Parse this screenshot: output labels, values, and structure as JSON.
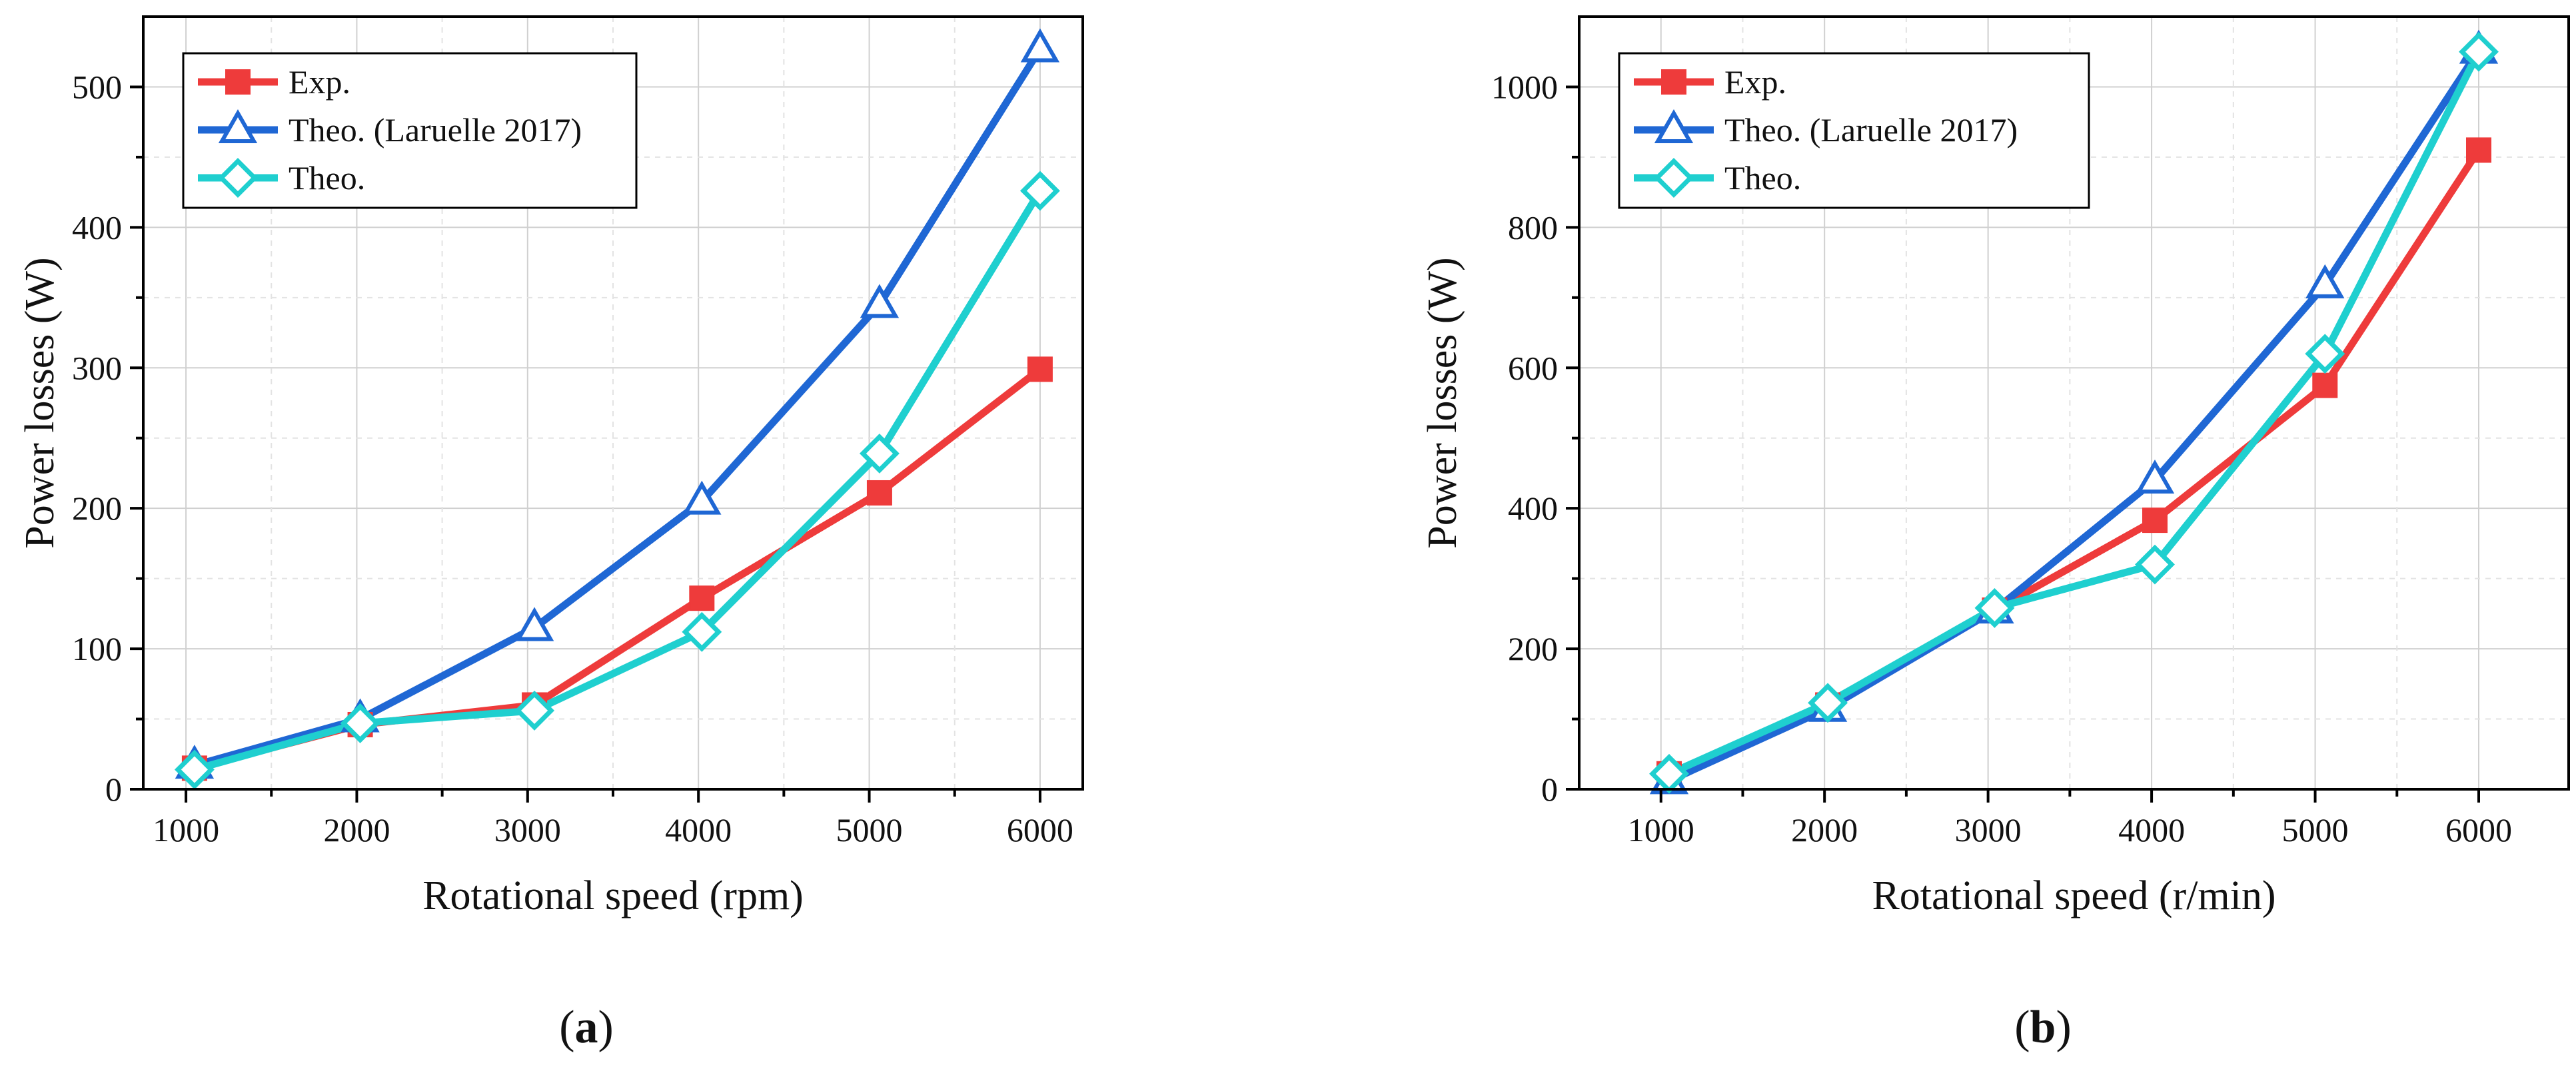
{
  "colors": {
    "exp": "#ee3b3b",
    "theo_laruelle": "#1f67d4",
    "theo": "#1fcfcf",
    "grid": "#d0d0d0",
    "axis": "#000000"
  },
  "chart_data": [
    {
      "type": "line",
      "panel": "a",
      "panel_label": {
        "open": "(",
        "letter": "a",
        "close": ")"
      },
      "xlabel": "Rotational speed (rpm)",
      "ylabel": "Power losses (W)",
      "xlim": [
        750,
        6250
      ],
      "ylim": [
        0,
        550
      ],
      "xticks": [
        1000,
        2000,
        3000,
        4000,
        5000,
        6000
      ],
      "yticks": [
        0,
        100,
        200,
        300,
        400,
        500
      ],
      "grid": true,
      "legend": "top-left",
      "series": [
        {
          "name": "Exp.",
          "marker": "square",
          "color_key": "exp",
          "x": [
            1050,
            2020,
            3040,
            4020,
            5060,
            6000
          ],
          "y": [
            15,
            46,
            60,
            136,
            211,
            299
          ]
        },
        {
          "name": "Theo. (Laruelle 2017)",
          "marker": "triangle",
          "color_key": "theo_laruelle",
          "x": [
            1050,
            2020,
            3040,
            4020,
            5060,
            6000
          ],
          "y": [
            17,
            50,
            115,
            205,
            345,
            527
          ]
        },
        {
          "name": "Theo.",
          "marker": "diamond",
          "color_key": "theo",
          "x": [
            1050,
            2020,
            3040,
            4020,
            5060,
            6000
          ],
          "y": [
            14,
            47,
            56,
            112,
            239,
            426
          ]
        }
      ]
    },
    {
      "type": "line",
      "panel": "b",
      "panel_label": {
        "open": "(",
        "letter": "b",
        "close": ")"
      },
      "xlabel": "Rotational speed (r/min)",
      "ylabel": "Power losses (W)",
      "xlim": [
        500,
        6550
      ],
      "ylim": [
        0,
        1100
      ],
      "xticks": [
        1000,
        2000,
        3000,
        4000,
        5000,
        6000
      ],
      "yticks": [
        0,
        200,
        400,
        600,
        800,
        1000
      ],
      "grid": true,
      "legend": "top-left",
      "series": [
        {
          "name": "Exp.",
          "marker": "square",
          "color_key": "exp",
          "x": [
            1050,
            2020,
            3040,
            4020,
            5060,
            6000
          ],
          "y": [
            22,
            120,
            255,
            383,
            575,
            910
          ]
        },
        {
          "name": "Theo. (Laruelle 2017)",
          "marker": "triangle",
          "color_key": "theo_laruelle",
          "x": [
            1050,
            2020,
            3040,
            4020,
            5060,
            6000
          ],
          "y": [
            12,
            115,
            255,
            440,
            718,
            1052
          ]
        },
        {
          "name": "Theo.",
          "marker": "diamond",
          "color_key": "theo",
          "x": [
            1050,
            2020,
            3040,
            4020,
            5060,
            6000
          ],
          "y": [
            22,
            123,
            258,
            320,
            620,
            1050
          ]
        }
      ]
    }
  ]
}
